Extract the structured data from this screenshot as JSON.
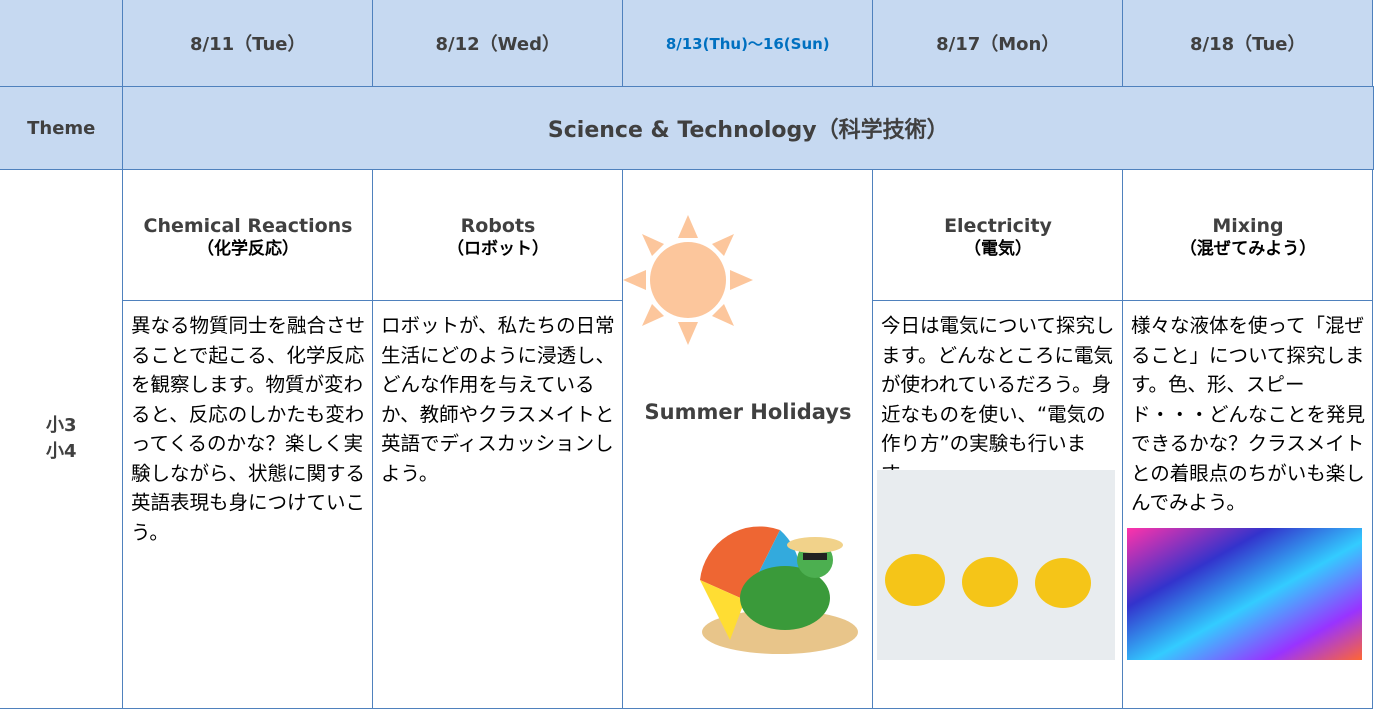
{
  "header": {
    "columns": [
      "8/11（Tue）",
      "8/12（Wed）",
      "8/13(Thu)～16(Sun)",
      "8/17（Mon）",
      "8/18（Tue）"
    ]
  },
  "theme": {
    "label": "Theme",
    "text": "Science & Technology（科学技術）"
  },
  "grade": [
    "小3",
    "小4"
  ],
  "lessons": [
    {
      "title": "Chemical Reactions",
      "subtitle": "（化学反応）",
      "description": "異なる物質同士を融合させることで起こる、化学反応を観察します。物質が変わると、反応のしかたも変わってくるのかな？楽しく実験しながら、状態に関する英語表現も身につけていこう。"
    },
    {
      "title": "Robots",
      "subtitle": "（ロボット）",
      "description": "ロボットが、私たちの日常生活にどのように浸透し、どんな作用を与えているか、教師やクラスメイトと英語でディスカッションしよう。"
    },
    {
      "holiday": "Summer Holidays"
    },
    {
      "title": "Electricity",
      "subtitle": "（電気）",
      "description": "今日は電気について探究します。どんなところに電気が使われているだろう。身近なものを使い、“電気の作り方”の実験も行います。"
    },
    {
      "title": "Mixing",
      "subtitle": "（混ぜてみよう）",
      "description": "様々な液体を使って「混ぜること」について探究します。色、形、スピード・・・どんなことを発見できるかな？クラスメイトとの着眼点のちがいも楽しんでみよう。"
    }
  ]
}
